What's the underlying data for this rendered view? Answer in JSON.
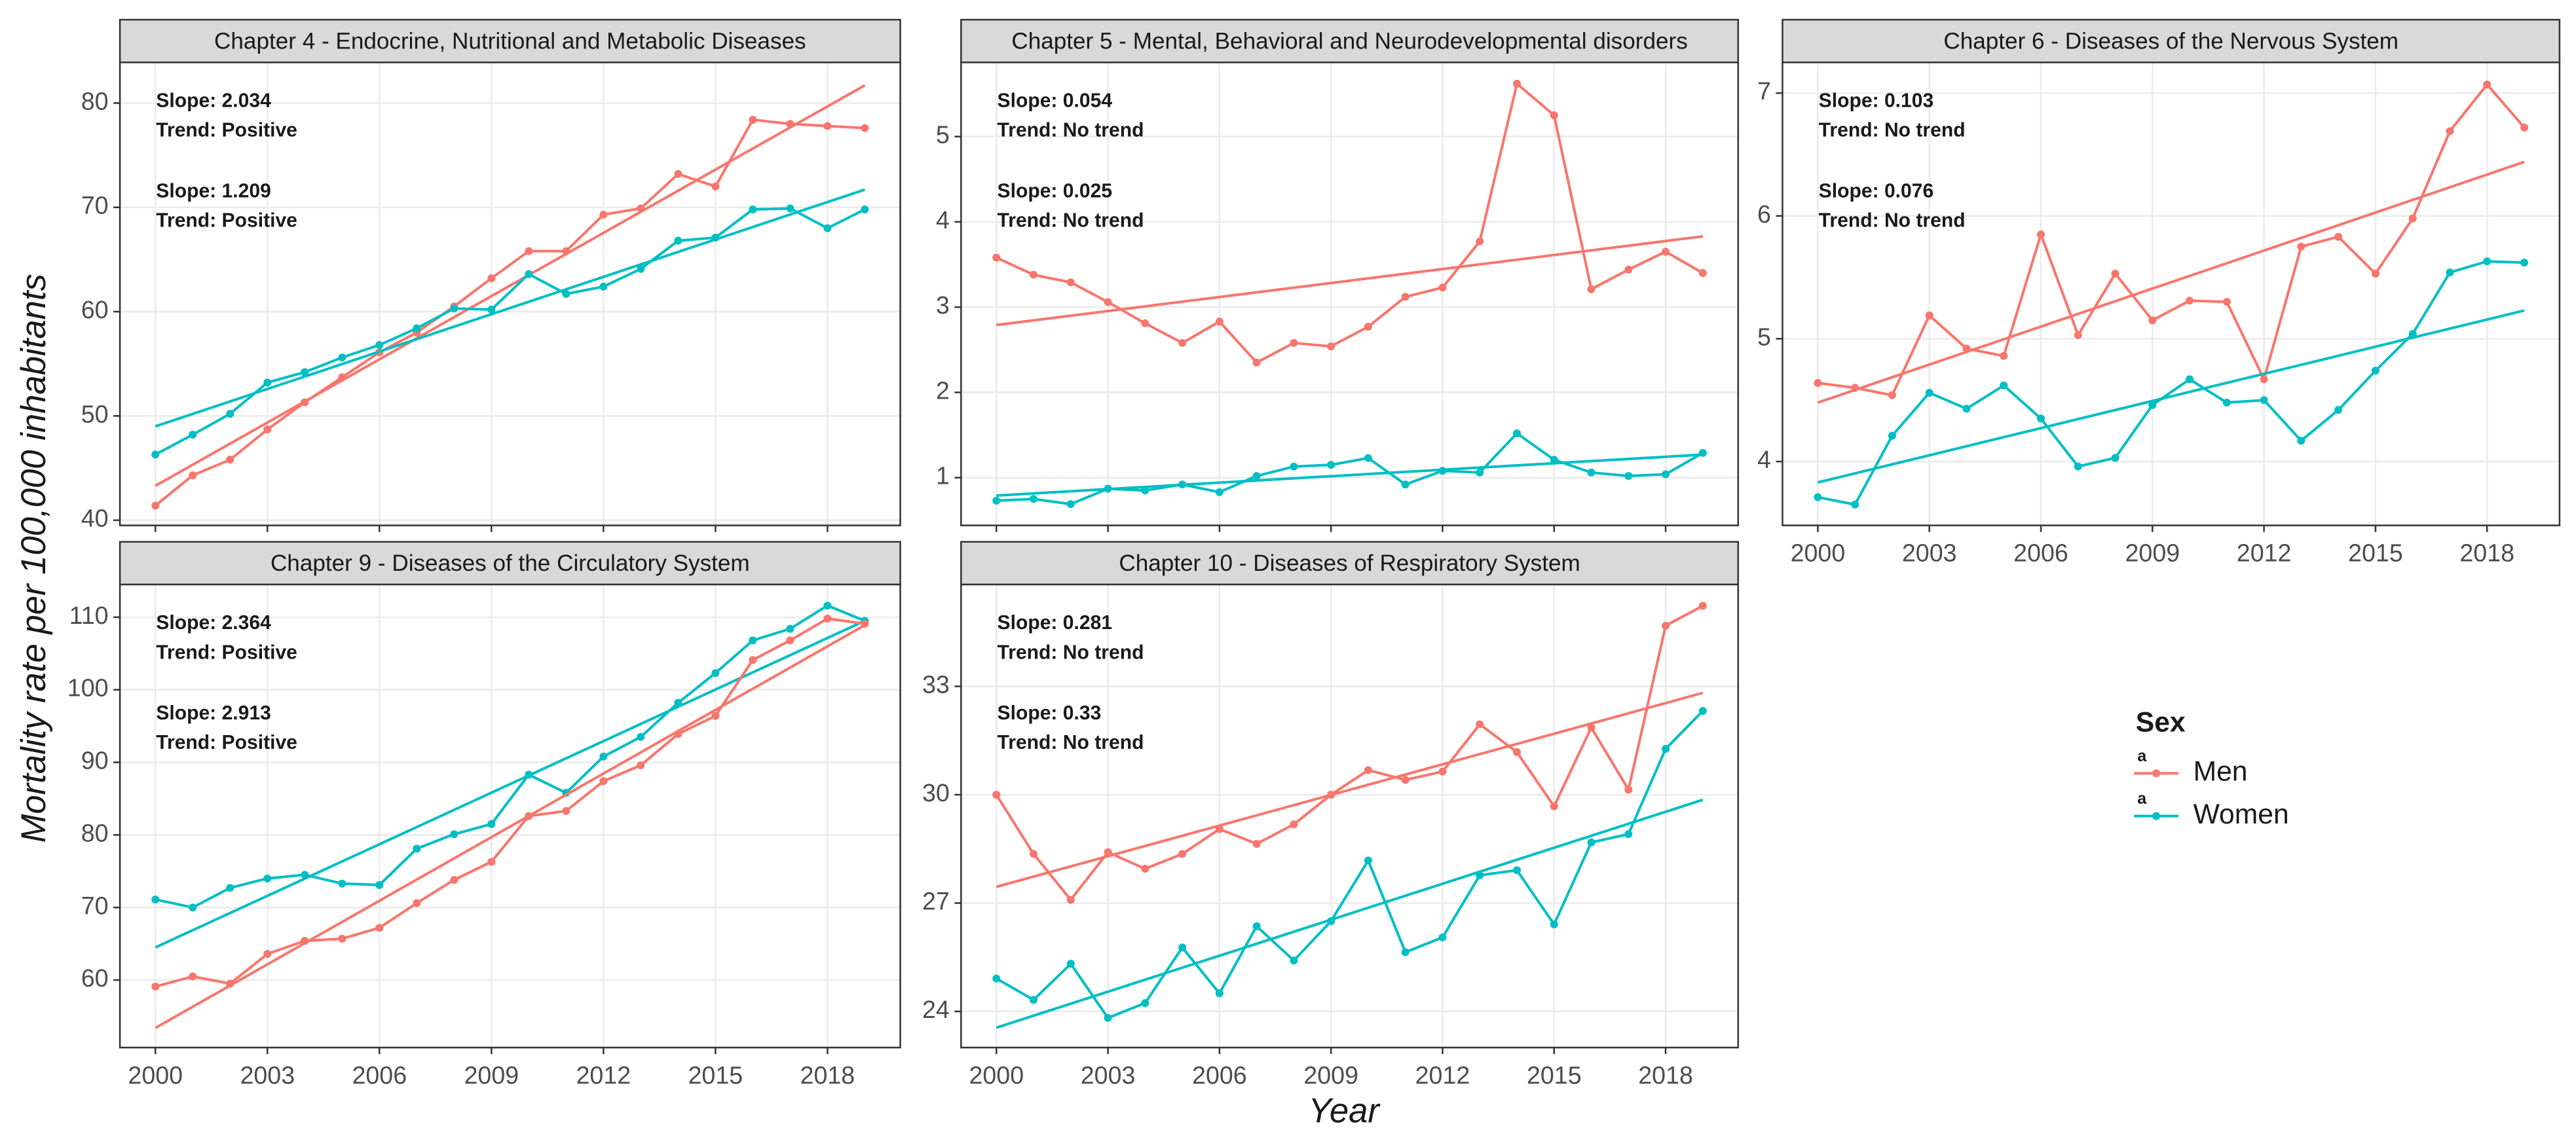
{
  "x_label": "Year",
  "y_label": "Mortality rate per 100,000 inhabitants",
  "legend_title": "Sex",
  "legend_glyph": "a",
  "chart_data": [
    {
      "type": "line",
      "title": "Chapter 4 - Endocrine, Nutritional and Metabolic Diseases",
      "x": [
        2000,
        2001,
        2002,
        2003,
        2004,
        2005,
        2006,
        2007,
        2008,
        2009,
        2010,
        2011,
        2012,
        2013,
        2014,
        2015,
        2016,
        2017,
        2018,
        2019
      ],
      "xlim": [
        1999.05,
        2019.95
      ],
      "xticks": [
        2000,
        2003,
        2006,
        2009,
        2012,
        2015,
        2018
      ],
      "ylim": [
        39.5,
        83.9
      ],
      "yticks": [
        40,
        50,
        60,
        70,
        80
      ],
      "grid": true,
      "trend_x": [
        2000,
        2019
      ],
      "series": [
        {
          "name": "Men",
          "color": "#F8766D",
          "slope_label": "Slope: 2.034",
          "trend_label": "Trend: Positive",
          "values": [
            41.4,
            44.3,
            45.8,
            48.7,
            51.3,
            53.7,
            56.1,
            58.0,
            60.5,
            63.2,
            65.8,
            65.8,
            69.3,
            69.9,
            73.2,
            72.0,
            78.4,
            78.0,
            77.8,
            77.6
          ],
          "trend_values": [
            43.3,
            81.7
          ]
        },
        {
          "name": "Women",
          "color": "#00BFC4",
          "slope_label": "Slope: 1.209",
          "trend_label": "Trend: Positive",
          "values": [
            46.3,
            48.2,
            50.2,
            53.2,
            54.2,
            55.6,
            56.8,
            58.4,
            60.3,
            60.2,
            63.6,
            61.7,
            62.4,
            64.1,
            66.8,
            67.1,
            69.8,
            69.9,
            68.0,
            69.8
          ],
          "trend_values": [
            49.0,
            71.7
          ]
        }
      ]
    },
    {
      "type": "line",
      "title": "Chapter 5 - Mental, Behavioral and Neurodevelopmental disorders",
      "x": [
        2000,
        2001,
        2002,
        2003,
        2004,
        2005,
        2006,
        2007,
        2008,
        2009,
        2010,
        2011,
        2012,
        2013,
        2014,
        2015,
        2016,
        2017,
        2018,
        2019
      ],
      "xlim": [
        1999.05,
        2019.95
      ],
      "xticks": [
        2000,
        2003,
        2006,
        2009,
        2012,
        2015,
        2018
      ],
      "ylim": [
        0.44,
        5.87
      ],
      "yticks": [
        1,
        2,
        3,
        4,
        5
      ],
      "grid": true,
      "trend_x": [
        2000,
        2019
      ],
      "series": [
        {
          "name": "Men",
          "color": "#F8766D",
          "slope_label": "Slope: 0.054",
          "trend_label": "Trend: No trend",
          "values": [
            3.58,
            3.38,
            3.29,
            3.06,
            2.81,
            2.58,
            2.83,
            2.35,
            2.58,
            2.54,
            2.77,
            3.12,
            3.23,
            3.77,
            5.62,
            5.25,
            3.21,
            3.44,
            3.65,
            3.4
          ],
          "trend_values": [
            2.79,
            3.83
          ]
        },
        {
          "name": "Women",
          "color": "#00BFC4",
          "slope_label": "Slope: 0.025",
          "trend_label": "Trend: No trend",
          "values": [
            0.73,
            0.75,
            0.69,
            0.87,
            0.85,
            0.92,
            0.83,
            1.02,
            1.13,
            1.15,
            1.23,
            0.92,
            1.08,
            1.06,
            1.52,
            1.21,
            1.06,
            1.02,
            1.04,
            1.29
          ],
          "trend_values": [
            0.79,
            1.27
          ]
        }
      ]
    },
    {
      "type": "line",
      "title": "Chapter 6 - Diseases of the Nervous System",
      "x": [
        2000,
        2001,
        2002,
        2003,
        2004,
        2005,
        2006,
        2007,
        2008,
        2009,
        2010,
        2011,
        2012,
        2013,
        2014,
        2015,
        2016,
        2017,
        2018,
        2019
      ],
      "xlim": [
        1999.05,
        2019.95
      ],
      "xticks": [
        2000,
        2003,
        2006,
        2009,
        2012,
        2015,
        2018
      ],
      "ylim": [
        3.48,
        7.25
      ],
      "yticks": [
        4,
        5,
        6,
        7
      ],
      "grid": true,
      "trend_x": [
        2000,
        2019
      ],
      "series": [
        {
          "name": "Men",
          "color": "#F8766D",
          "slope_label": "Slope: 0.103",
          "trend_label": "Trend: No trend",
          "values": [
            4.64,
            4.6,
            4.54,
            5.19,
            4.92,
            4.86,
            5.85,
            5.03,
            5.53,
            5.15,
            5.31,
            5.3,
            4.67,
            5.75,
            5.83,
            5.53,
            5.98,
            6.69,
            7.07,
            6.72
          ],
          "trend_values": [
            4.48,
            6.44
          ]
        },
        {
          "name": "Women",
          "color": "#00BFC4",
          "slope_label": "Slope: 0.076",
          "trend_label": "Trend: No trend",
          "values": [
            3.71,
            3.65,
            4.21,
            4.56,
            4.43,
            4.62,
            4.35,
            3.96,
            4.03,
            4.46,
            4.67,
            4.48,
            4.5,
            4.17,
            4.42,
            4.74,
            5.04,
            5.54,
            5.63,
            5.62
          ],
          "trend_values": [
            3.83,
            5.23
          ]
        }
      ]
    },
    {
      "type": "line",
      "title": "Chapter 9 - Diseases of the Circulatory System",
      "x": [
        2000,
        2001,
        2002,
        2003,
        2004,
        2005,
        2006,
        2007,
        2008,
        2009,
        2010,
        2011,
        2012,
        2013,
        2014,
        2015,
        2016,
        2017,
        2018,
        2019
      ],
      "xlim": [
        1999.05,
        2019.95
      ],
      "xticks": [
        2000,
        2003,
        2006,
        2009,
        2012,
        2015,
        2018
      ],
      "ylim": [
        50.7,
        114.5
      ],
      "yticks": [
        60,
        70,
        80,
        90,
        100,
        110
      ],
      "grid": true,
      "trend_x": [
        2000,
        2019
      ],
      "series": [
        {
          "name": "Women",
          "color": "#00BFC4",
          "slope_label": "Slope: 2.364",
          "trend_label": "Trend: Positive",
          "values": [
            71.1,
            70.0,
            72.7,
            74.0,
            74.5,
            73.3,
            73.1,
            78.1,
            80.1,
            81.5,
            88.3,
            85.8,
            90.8,
            93.5,
            98.2,
            102.3,
            106.8,
            108.4,
            111.6,
            109.5
          ],
          "trend_values": [
            64.5,
            109.5
          ]
        },
        {
          "name": "Men",
          "color": "#F8766D",
          "slope_label": "Slope: 2.913",
          "trend_label": "Trend: Positive",
          "values": [
            59.1,
            60.5,
            59.5,
            63.6,
            65.4,
            65.7,
            67.2,
            70.6,
            73.8,
            76.3,
            82.6,
            83.3,
            87.4,
            89.6,
            93.9,
            96.4,
            104.1,
            106.8,
            109.8,
            109.1
          ],
          "trend_values": [
            53.4,
            108.9
          ]
        }
      ]
    },
    {
      "type": "line",
      "title": "Chapter 10 - Diseases of Respiratory System",
      "x": [
        2000,
        2001,
        2002,
        2003,
        2004,
        2005,
        2006,
        2007,
        2008,
        2009,
        2010,
        2011,
        2012,
        2013,
        2014,
        2015,
        2016,
        2017,
        2018,
        2019
      ],
      "xlim": [
        1999.05,
        2019.95
      ],
      "xticks": [
        2000,
        2003,
        2006,
        2009,
        2012,
        2015,
        2018
      ],
      "ylim": [
        23.0,
        35.82
      ],
      "yticks": [
        24,
        27,
        30,
        33
      ],
      "grid": true,
      "trend_x": [
        2000,
        2019
      ],
      "series": [
        {
          "name": "Men",
          "color": "#F8766D",
          "slope_label": "Slope: 0.281",
          "trend_label": "Trend: No trend",
          "values": [
            30.0,
            28.36,
            27.09,
            28.41,
            27.95,
            28.36,
            29.05,
            28.64,
            29.18,
            30.0,
            30.68,
            30.41,
            30.64,
            31.95,
            31.18,
            29.68,
            31.86,
            30.14,
            34.68,
            35.23
          ],
          "trend_values": [
            27.45,
            32.82
          ]
        },
        {
          "name": "Women",
          "color": "#00BFC4",
          "slope_label": "Slope: 0.33",
          "trend_label": "Trend: No trend",
          "values": [
            24.91,
            24.32,
            25.32,
            23.82,
            24.23,
            25.77,
            24.5,
            26.36,
            25.41,
            26.5,
            28.18,
            25.64,
            26.05,
            27.77,
            27.91,
            26.41,
            28.68,
            28.91,
            31.27,
            32.32
          ],
          "trend_values": [
            23.55,
            29.86
          ]
        }
      ]
    }
  ]
}
